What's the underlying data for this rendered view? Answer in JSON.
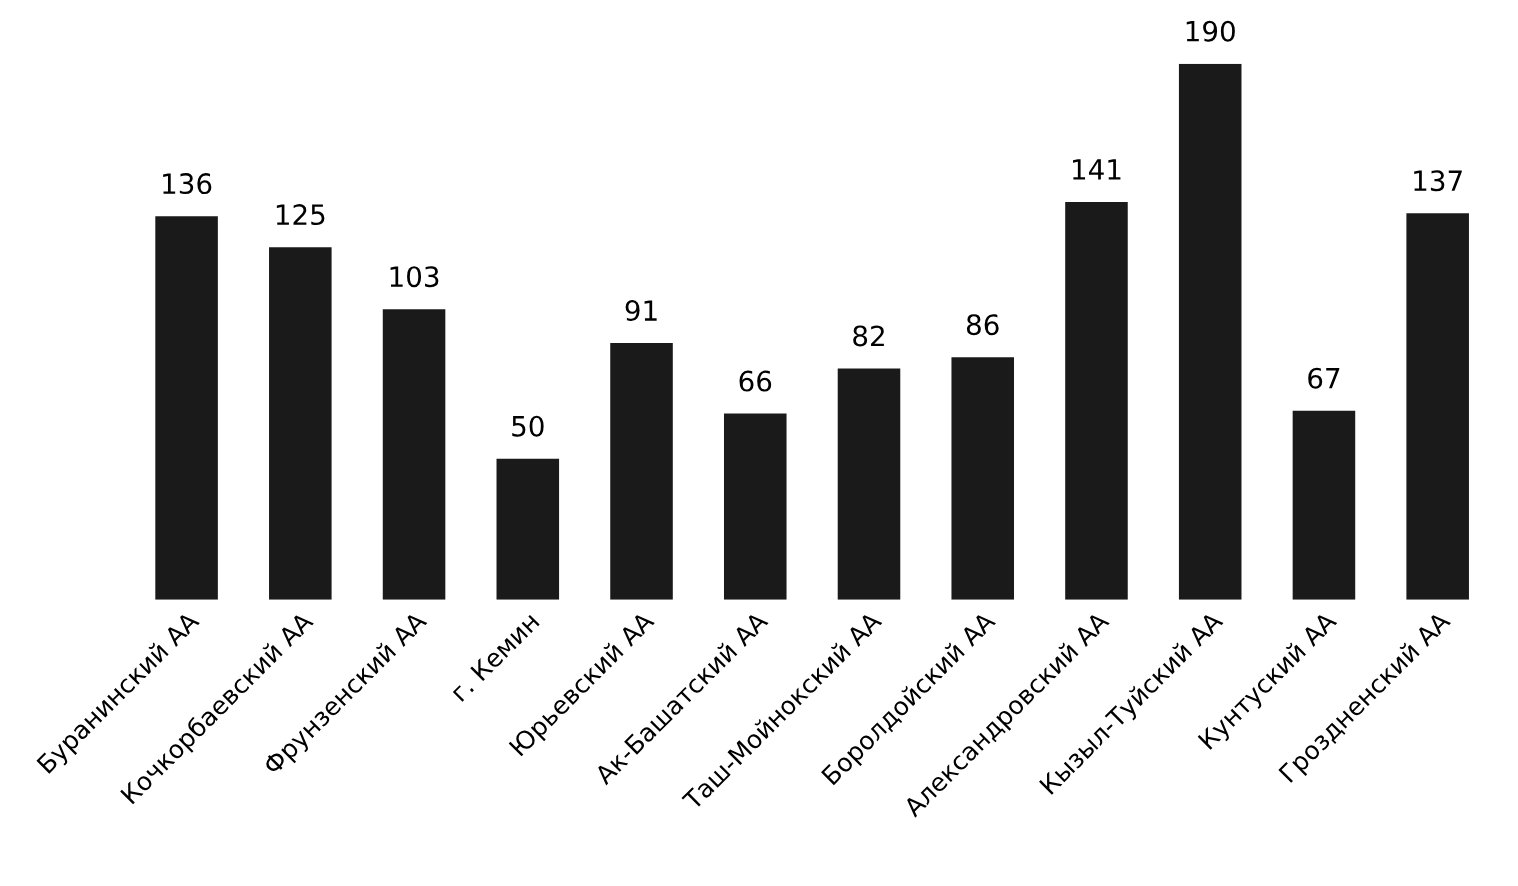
{
  "chart_data": {
    "type": "bar",
    "categories": [
      "Буранинский АА",
      "Кочкорбаевский АА",
      "Фрунзенский АА",
      "г. Кемин",
      "Юрьевский АА",
      "Ак-Башатский АА",
      "Таш-Мойнокский АА",
      "Боролдойский АА",
      "Александровский АА",
      "Кызыл-Туйский АА",
      "Кунтуский АА",
      "Гроздненский АА"
    ],
    "values": [
      136,
      125,
      103,
      50,
      91,
      66,
      82,
      86,
      141,
      190,
      67,
      137
    ],
    "color": "#1a1a1a",
    "data_labels": true,
    "grid": false,
    "legend": false
  }
}
